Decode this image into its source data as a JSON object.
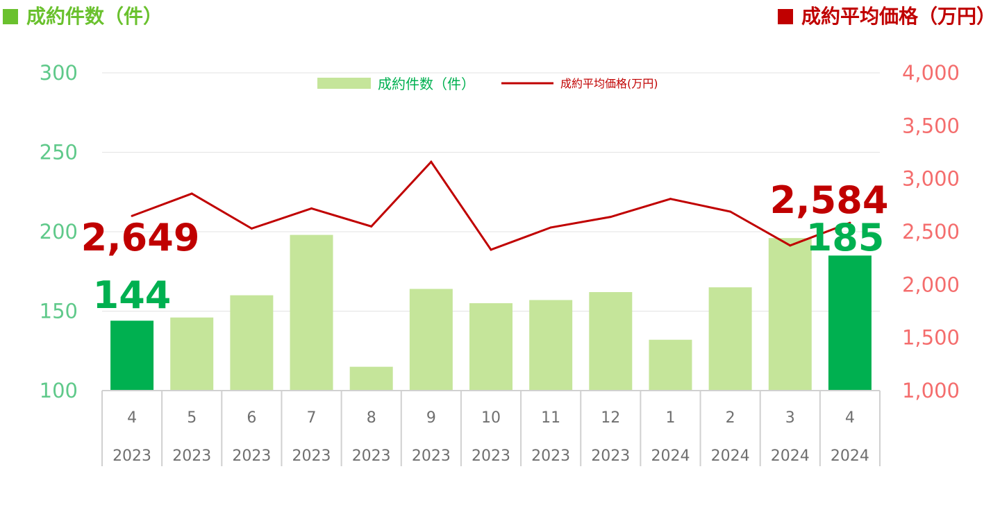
{
  "header": {
    "left_title": "成約件数（件）",
    "right_title": "成約平均価格（万円）",
    "left_color": "#6ac12e",
    "right_color": "#c00000"
  },
  "chart_data": {
    "type": "bar",
    "categories": [
      [
        "4",
        "2023"
      ],
      [
        "5",
        "2023"
      ],
      [
        "6",
        "2023"
      ],
      [
        "7",
        "2023"
      ],
      [
        "8",
        "2023"
      ],
      [
        "9",
        "2023"
      ],
      [
        "10",
        "2023"
      ],
      [
        "11",
        "2023"
      ],
      [
        "12",
        "2023"
      ],
      [
        "1",
        "2024"
      ],
      [
        "2",
        "2024"
      ],
      [
        "3",
        "2024"
      ],
      [
        "4",
        "2024"
      ]
    ],
    "series": [
      {
        "name": "成約件数（件）",
        "type": "bar",
        "axis": "left",
        "values": [
          144,
          146,
          160,
          198,
          115,
          164,
          155,
          157,
          162,
          132,
          165,
          196,
          185
        ],
        "color": "#c5e59a",
        "highlight_color": "#00b050",
        "highlight_indices": [
          0,
          12
        ]
      },
      {
        "name": "成約平均価格(万円)",
        "type": "line",
        "axis": "right",
        "values": [
          2649,
          2860,
          2530,
          2720,
          2550,
          3160,
          2330,
          2540,
          2640,
          2810,
          2690,
          2370,
          2584
        ],
        "color": "#c00000"
      }
    ],
    "y_left": {
      "min": 100,
      "max": 300,
      "ticks": [
        "100",
        "150",
        "200",
        "250",
        "300"
      ],
      "color": "#5fc98a"
    },
    "y_right": {
      "min": 1000,
      "max": 4000,
      "ticks": [
        "1,000",
        "1,500",
        "2,000",
        "2,500",
        "3,000",
        "3,500",
        "4,000"
      ],
      "color": "#f46d6d"
    },
    "annotations": [
      {
        "text": "2,649",
        "color": "#c00000"
      },
      {
        "text": "144",
        "color": "#00b050"
      },
      {
        "text": "2,584",
        "color": "#c00000"
      },
      {
        "text": "185",
        "color": "#00b050"
      }
    ],
    "legend": {
      "placement": "top-center"
    },
    "grid": true
  }
}
